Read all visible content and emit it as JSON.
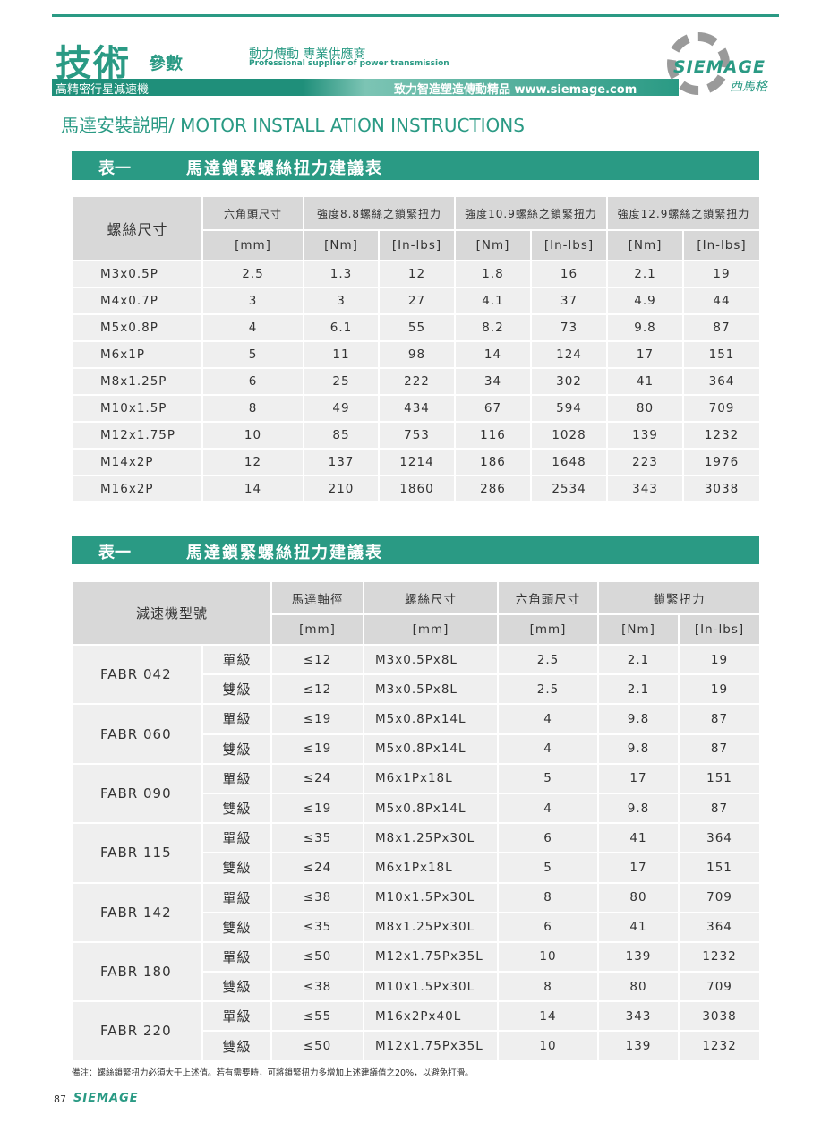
{
  "header": {
    "title": "技術",
    "subtitle": "參數",
    "slogan": "動力傳動 專業供應商",
    "slogan_en": "Professional supplier of power transmission",
    "band_left": "高精密行星減速機",
    "band_right": "致力智造塑造傳動精品  www.siemage.com",
    "logo": "SIEMAGE",
    "logo_cn": "西馬格"
  },
  "page_heading": "馬達安裝説明/ MOTOR INSTALL ATION INSTRUCTIONS",
  "table1": {
    "label": "表一",
    "title": "馬達鎖緊螺絲扭力建議表",
    "headers": [
      "螺絲尺寸",
      "六角頭尺寸",
      "強度8.8螺絲之鎖緊扭力",
      "強度10.9螺絲之鎖緊扭力",
      "強度12.9螺絲之鎖緊扭力"
    ],
    "units": [
      "[mm]",
      "[Nm]",
      "[In-lbs]",
      "[Nm]",
      "[In-lbs]",
      "[Nm]",
      "[In-lbs]"
    ],
    "rows": [
      [
        "M3x0.5P",
        "2.5",
        "1.3",
        "12",
        "1.8",
        "16",
        "2.1",
        "19"
      ],
      [
        "M4x0.7P",
        "3",
        "3",
        "27",
        "4.1",
        "37",
        "4.9",
        "44"
      ],
      [
        "M5x0.8P",
        "4",
        "6.1",
        "55",
        "8.2",
        "73",
        "9.8",
        "87"
      ],
      [
        "M6x1P",
        "5",
        "11",
        "98",
        "14",
        "124",
        "17",
        "151"
      ],
      [
        "M8x1.25P",
        "6",
        "25",
        "222",
        "34",
        "302",
        "41",
        "364"
      ],
      [
        "M10x1.5P",
        "8",
        "49",
        "434",
        "67",
        "594",
        "80",
        "709"
      ],
      [
        "M12x1.75P",
        "10",
        "85",
        "753",
        "116",
        "1028",
        "139",
        "1232"
      ],
      [
        "M14x2P",
        "12",
        "137",
        "1214",
        "186",
        "1648",
        "223",
        "1976"
      ],
      [
        "M16x2P",
        "14",
        "210",
        "1860",
        "286",
        "2534",
        "343",
        "3038"
      ]
    ]
  },
  "table2": {
    "label": "表一",
    "title": "馬達鎖緊螺絲扭力建議表",
    "headers": [
      "減速機型號",
      "馬達軸徑",
      "螺絲尺寸",
      "六角頭尺寸",
      "鎖緊扭力"
    ],
    "units": [
      "[mm]",
      "[mm]",
      "[mm]",
      "[Nm]",
      "[In-lbs]"
    ],
    "groups": [
      {
        "model": "FABR 042",
        "rows": [
          [
            "單級",
            "≤12",
            "M3x0.5Px8L",
            "2.5",
            "2.1",
            "19"
          ],
          [
            "雙級",
            "≤12",
            "M3x0.5Px8L",
            "2.5",
            "2.1",
            "19"
          ]
        ]
      },
      {
        "model": "FABR 060",
        "rows": [
          [
            "單級",
            "≤19",
            "M5x0.8Px14L",
            "4",
            "9.8",
            "87"
          ],
          [
            "雙級",
            "≤19",
            "M5x0.8Px14L",
            "4",
            "9.8",
            "87"
          ]
        ]
      },
      {
        "model": "FABR 090",
        "rows": [
          [
            "單級",
            "≤24",
            "M6x1Px18L",
            "5",
            "17",
            "151"
          ],
          [
            "雙級",
            "≤19",
            "M5x0.8Px14L",
            "4",
            "9.8",
            "87"
          ]
        ]
      },
      {
        "model": "FABR 115",
        "rows": [
          [
            "單級",
            "≤35",
            "M8x1.25Px30L",
            "6",
            "41",
            "364"
          ],
          [
            "雙級",
            "≤24",
            "M6x1Px18L",
            "5",
            "17",
            "151"
          ]
        ]
      },
      {
        "model": "FABR 142",
        "rows": [
          [
            "單級",
            "≤38",
            "M10x1.5Px30L",
            "8",
            "80",
            "709"
          ],
          [
            "雙級",
            "≤35",
            "M8x1.25Px30L",
            "6",
            "41",
            "364"
          ]
        ]
      },
      {
        "model": "FABR 180",
        "rows": [
          [
            "單級",
            "≤50",
            "M12x1.75Px35L",
            "10",
            "139",
            "1232"
          ],
          [
            "雙級",
            "≤38",
            "M10x1.5Px30L",
            "8",
            "80",
            "709"
          ]
        ]
      },
      {
        "model": "FABR 220",
        "rows": [
          [
            "單級",
            "≤55",
            "M16x2Px40L",
            "14",
            "343",
            "3038"
          ],
          [
            "雙級",
            "≤50",
            "M12x1.75Px35L",
            "10",
            "139",
            "1232"
          ]
        ]
      }
    ]
  },
  "note": "備注：螺絲鎖緊扭力必須大于上述值。若有需要時，可將鎖緊扭力多增加上述建議值之20%，以避免打滑。",
  "footer": {
    "page": "87",
    "logo": "SIEMAGE"
  }
}
